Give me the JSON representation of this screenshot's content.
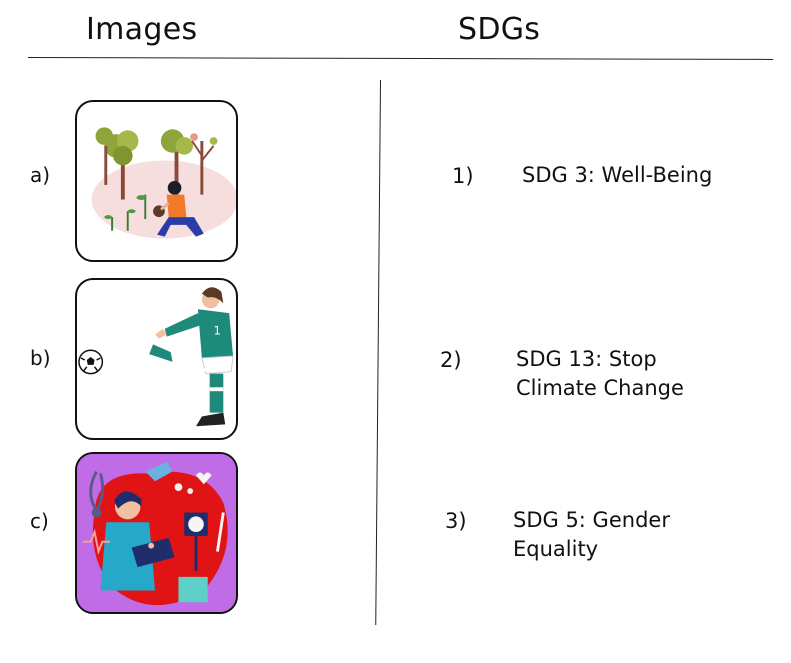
{
  "headers": {
    "images": "Images",
    "sdgs": "SDGs"
  },
  "images": [
    {
      "label": "a)"
    },
    {
      "label": "b)"
    },
    {
      "label": "c)"
    }
  ],
  "sdgs": [
    {
      "number": "1)",
      "line1": "SDG 3: Well-Being",
      "line2": ""
    },
    {
      "number": "2)",
      "line1": "SDG 13: Stop",
      "line2": "Climate Change"
    },
    {
      "number": "3)",
      "line1": "SDG 5: Gender",
      "line2": "Equality"
    }
  ],
  "colors": {
    "purple": "#c06ce6",
    "red": "#e01414",
    "teal": "#1d8a7a",
    "navy": "#1f2d6b",
    "tree_green": "#8fa43a"
  }
}
